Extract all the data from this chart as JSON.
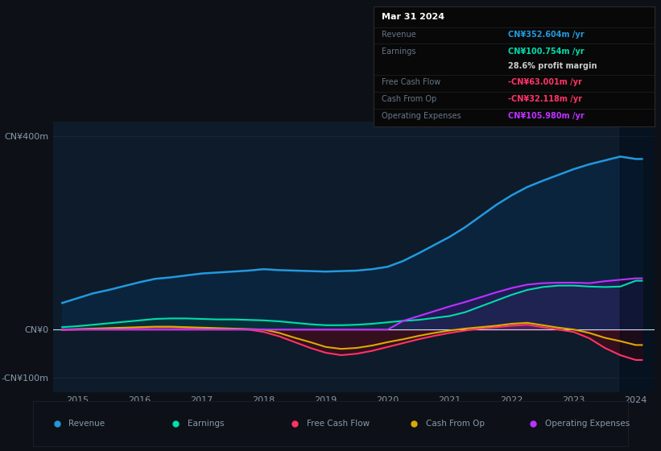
{
  "bg_color": "#0d1117",
  "plot_bg_color": "#0d1b2a",
  "years": [
    2014.75,
    2015.0,
    2015.25,
    2015.5,
    2015.75,
    2016.0,
    2016.25,
    2016.5,
    2016.75,
    2017.0,
    2017.25,
    2017.5,
    2017.75,
    2018.0,
    2018.25,
    2018.5,
    2018.75,
    2019.0,
    2019.25,
    2019.5,
    2019.75,
    2020.0,
    2020.25,
    2020.5,
    2020.75,
    2021.0,
    2021.25,
    2021.5,
    2021.75,
    2022.0,
    2022.25,
    2022.5,
    2022.75,
    2023.0,
    2023.25,
    2023.5,
    2023.75,
    2024.0,
    2024.1
  ],
  "revenue": [
    55,
    65,
    75,
    82,
    90,
    98,
    105,
    108,
    112,
    116,
    118,
    120,
    122,
    125,
    123,
    122,
    121,
    120,
    121,
    122,
    125,
    130,
    142,
    158,
    175,
    192,
    212,
    235,
    258,
    278,
    295,
    308,
    320,
    332,
    342,
    350,
    358,
    353,
    353
  ],
  "earnings": [
    5,
    7,
    10,
    13,
    16,
    19,
    22,
    23,
    23,
    22,
    21,
    21,
    20,
    19,
    17,
    14,
    11,
    9,
    9,
    10,
    12,
    15,
    18,
    20,
    24,
    28,
    36,
    48,
    60,
    72,
    82,
    88,
    91,
    91,
    89,
    88,
    89,
    101,
    101
  ],
  "free_cash_flow": [
    -1,
    0,
    1,
    2,
    3,
    4,
    5,
    5,
    4,
    3,
    2,
    1,
    0,
    -5,
    -14,
    -26,
    -38,
    -48,
    -53,
    -50,
    -44,
    -36,
    -28,
    -20,
    -13,
    -7,
    -2,
    2,
    5,
    8,
    10,
    5,
    0,
    -5,
    -18,
    -38,
    -53,
    -63,
    -63
  ],
  "cash_from_op": [
    0,
    1,
    2,
    3,
    4,
    5,
    6,
    6,
    5,
    4,
    3,
    2,
    1,
    0,
    -7,
    -17,
    -26,
    -36,
    -40,
    -38,
    -33,
    -26,
    -20,
    -13,
    -7,
    -2,
    2,
    5,
    8,
    12,
    14,
    9,
    4,
    0,
    -7,
    -17,
    -24,
    -32,
    -32
  ],
  "operating_expenses": [
    0,
    0,
    0,
    0,
    0,
    0,
    0,
    0,
    0,
    0,
    0,
    0,
    0,
    0,
    0,
    0,
    0,
    0,
    0,
    0,
    0,
    0,
    18,
    28,
    38,
    48,
    57,
    67,
    77,
    86,
    93,
    96,
    97,
    97,
    96,
    100,
    103,
    106,
    106
  ],
  "revenue_color": "#2299dd",
  "earnings_color": "#00ddaa",
  "free_cash_flow_color": "#ff3366",
  "cash_from_op_color": "#ddaa00",
  "operating_expenses_color": "#bb33ff",
  "grid_color": "#1e2d3d",
  "zero_line_color": "#ccddee",
  "text_color": "#8899aa",
  "highlight_start": 2023.75,
  "xlim_min": 2014.6,
  "xlim_max": 2024.3,
  "ylim_min": -130,
  "ylim_max": 430,
  "yticks": [
    -100,
    0,
    400
  ],
  "ytick_labels": [
    "-CN¥100m",
    "CN¥0",
    "CN¥400m"
  ],
  "xticks": [
    2015,
    2016,
    2017,
    2018,
    2019,
    2020,
    2021,
    2022,
    2023,
    2024
  ],
  "legend_items": [
    {
      "label": "Revenue",
      "color": "#2299dd"
    },
    {
      "label": "Earnings",
      "color": "#00ddaa"
    },
    {
      "label": "Free Cash Flow",
      "color": "#ff3366"
    },
    {
      "label": "Cash From Op",
      "color": "#ddaa00"
    },
    {
      "label": "Operating Expenses",
      "color": "#bb33ff"
    }
  ],
  "tooltip_title": "Mar 31 2024",
  "tooltip_rows": [
    {
      "label": "Revenue",
      "value": "CN¥352.604m /yr",
      "label_color": "#667788",
      "value_color": "#2299dd"
    },
    {
      "label": "Earnings",
      "value": "CN¥100.754m /yr",
      "label_color": "#667788",
      "value_color": "#00ddaa"
    },
    {
      "label": "",
      "value": "28.6% profit margin",
      "label_color": "#cccccc",
      "value_color": "#cccccc"
    },
    {
      "label": "Free Cash Flow",
      "value": "-CN¥63.001m /yr",
      "label_color": "#667788",
      "value_color": "#ff3366"
    },
    {
      "label": "Cash From Op",
      "value": "-CN¥32.118m /yr",
      "label_color": "#667788",
      "value_color": "#ff3366"
    },
    {
      "label": "Operating Expenses",
      "value": "CN¥105.980m /yr",
      "label_color": "#667788",
      "value_color": "#bb33ff"
    }
  ]
}
